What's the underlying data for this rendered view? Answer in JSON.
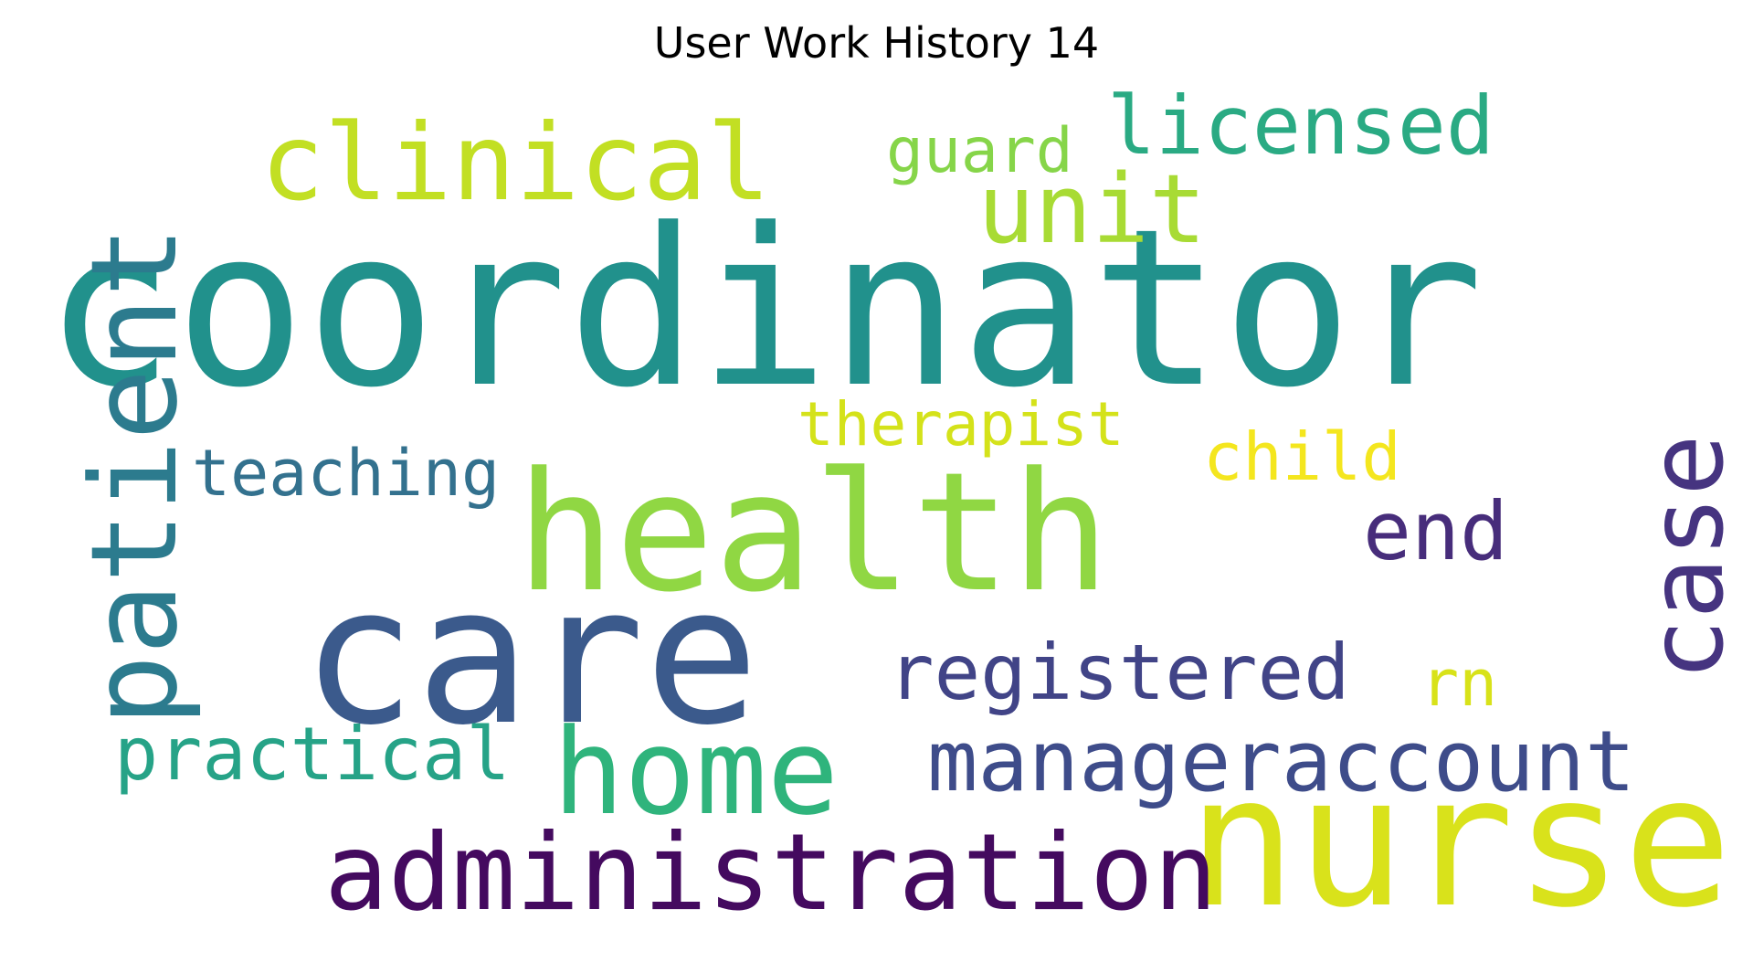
{
  "title": "User Work History 14",
  "words": [
    {
      "text": "coordinator",
      "color": "#21918c"
    },
    {
      "text": "nurse",
      "color": "#d9e21b"
    },
    {
      "text": "care",
      "color": "#3b5a8c"
    },
    {
      "text": "health",
      "color": "#90d743"
    },
    {
      "text": "home",
      "color": "#2fb47c"
    },
    {
      "text": "administration",
      "color": "#440a5f"
    },
    {
      "text": "manageraccount",
      "color": "#3e4c8a"
    },
    {
      "text": "patient",
      "color": "#2c7b8e"
    },
    {
      "text": "case",
      "color": "#463480"
    },
    {
      "text": "clinical",
      "color": "#c2df23"
    },
    {
      "text": "unit",
      "color": "#a8db34"
    },
    {
      "text": "registered",
      "color": "#414487"
    },
    {
      "text": "licensed",
      "color": "#2aaa83"
    },
    {
      "text": "end",
      "color": "#472d7b"
    },
    {
      "text": "practical",
      "color": "#26a387"
    },
    {
      "text": "teaching",
      "color": "#33718e"
    },
    {
      "text": "therapist",
      "color": "#d4e21a"
    },
    {
      "text": "child",
      "color": "#f4e61e"
    },
    {
      "text": "guard",
      "color": "#86d549"
    },
    {
      "text": "rn",
      "color": "#d8e219"
    }
  ]
}
